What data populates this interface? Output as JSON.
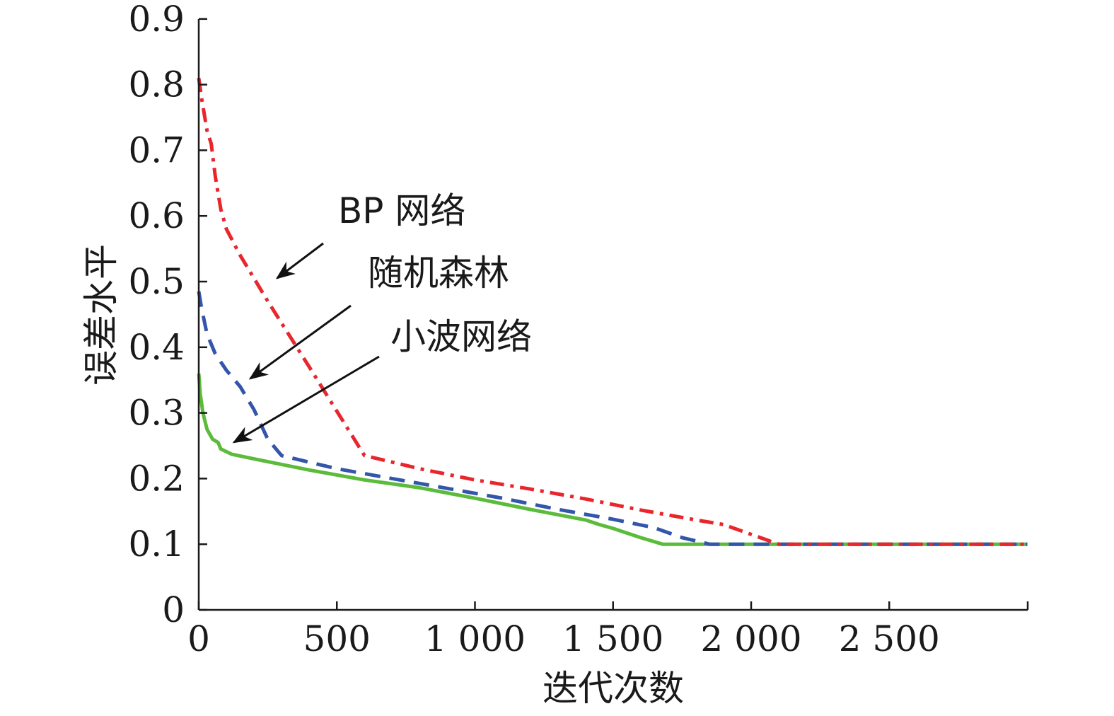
{
  "chart_data": {
    "type": "line",
    "title": "",
    "xlabel": "迭代次数",
    "ylabel": "误差水平",
    "xlim": [
      0,
      3000
    ],
    "ylim": [
      0,
      0.9
    ],
    "x_ticks": [
      0,
      500,
      1000,
      1500,
      2000,
      2500
    ],
    "x_tick_labels": [
      "0",
      "500",
      "1 000",
      "1 500",
      "2 000",
      "2 500"
    ],
    "y_ticks": [
      0,
      0.1,
      0.2,
      0.3,
      0.4,
      0.5,
      0.6,
      0.7,
      0.8,
      0.9
    ],
    "y_tick_labels": [
      "0",
      "0.1",
      "0.2",
      "0.3",
      "0.4",
      "0.5",
      "0.6",
      "0.7",
      "0.8",
      "0.9"
    ],
    "grid": false,
    "legend": "none",
    "series": [
      {
        "name": "BP 网络",
        "color": "#e8262c",
        "style": "dash-dot",
        "x": [
          0,
          10,
          30,
          45,
          60,
          80,
          100,
          150,
          250,
          400,
          600,
          800,
          1000,
          1200,
          1400,
          1600,
          1800,
          1900,
          2000,
          2100,
          2500,
          3000
        ],
        "y": [
          0.81,
          0.78,
          0.73,
          0.71,
          0.66,
          0.61,
          0.58,
          0.54,
          0.47,
          0.37,
          0.235,
          0.215,
          0.198,
          0.184,
          0.169,
          0.152,
          0.137,
          0.13,
          0.115,
          0.1,
          0.1,
          0.1
        ]
      },
      {
        "name": "随机森林",
        "color": "#3355aa",
        "style": "dashed",
        "x": [
          0,
          10,
          30,
          60,
          100,
          150,
          200,
          250,
          300,
          500,
          700,
          900,
          1100,
          1300,
          1500,
          1650,
          1750,
          1850,
          2100,
          2500,
          3000
        ],
        "y": [
          0.485,
          0.46,
          0.42,
          0.39,
          0.365,
          0.34,
          0.305,
          0.26,
          0.235,
          0.215,
          0.2,
          0.185,
          0.17,
          0.153,
          0.138,
          0.125,
          0.11,
          0.1,
          0.1,
          0.1,
          0.1
        ]
      },
      {
        "name": "小波网络",
        "color": "#5bbb3a",
        "style": "solid",
        "x": [
          0,
          5,
          15,
          30,
          50,
          70,
          80,
          120,
          200,
          400,
          600,
          800,
          1000,
          1200,
          1400,
          1450,
          1500,
          1600,
          1680,
          2000,
          2500,
          3000
        ],
        "y": [
          0.36,
          0.33,
          0.3,
          0.275,
          0.26,
          0.255,
          0.245,
          0.237,
          0.23,
          0.213,
          0.198,
          0.186,
          0.17,
          0.153,
          0.137,
          0.13,
          0.124,
          0.11,
          0.1,
          0.1,
          0.1,
          0.1
        ]
      }
    ],
    "annotations": [
      {
        "text": "BP 网络",
        "target_series": "BP 网络"
      },
      {
        "text": "随机森林",
        "target_series": "随机森林"
      },
      {
        "text": "小波网络",
        "target_series": "小波网络"
      }
    ]
  }
}
